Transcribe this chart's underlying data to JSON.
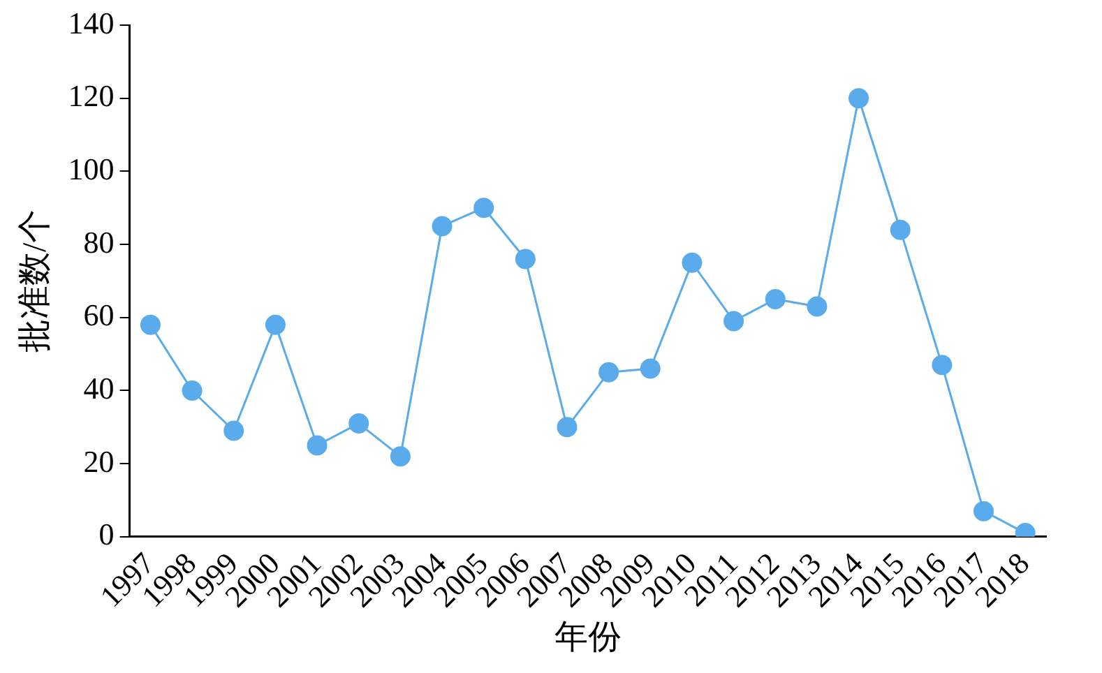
{
  "chart_data": {
    "type": "line",
    "xlabel": "年份",
    "ylabel": "批准数/个",
    "categories": [
      "1997",
      "1998",
      "1999",
      "2000",
      "2001",
      "2002",
      "2003",
      "2004",
      "2005",
      "2006",
      "2007",
      "2008",
      "2009",
      "2010",
      "2011",
      "2012",
      "2013",
      "2014",
      "2015",
      "2016",
      "2017",
      "2018"
    ],
    "series": [
      {
        "color": "#5aabeb",
        "values": [
          58,
          40,
          29,
          58,
          25,
          31,
          22,
          85,
          90,
          76,
          30,
          45,
          46,
          75,
          59,
          65,
          63,
          120,
          84,
          47,
          7,
          1
        ]
      }
    ],
    "ylim": [
      0,
      140
    ],
    "yticks": [
      0,
      20,
      40,
      60,
      80,
      100,
      120,
      140
    ],
    "grid": false,
    "legend": false,
    "marker": "circle",
    "line_style": "solid"
  }
}
